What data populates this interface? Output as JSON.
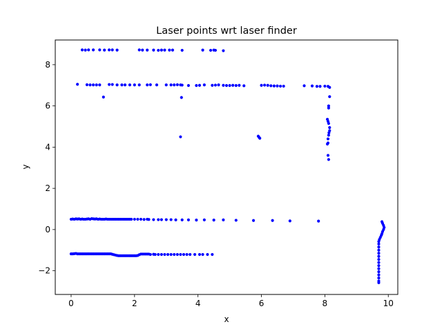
{
  "chart_data": {
    "type": "scatter",
    "title": "Laser points wrt laser finder",
    "xlabel": "x",
    "ylabel": "y",
    "xlim": [
      -0.5,
      10.3
    ],
    "ylim": [
      -3.15,
      9.2
    ],
    "xticks": [
      0,
      2,
      4,
      6,
      8,
      10
    ],
    "yticks": [
      -2,
      0,
      2,
      4,
      6,
      8
    ],
    "xtick_labels": [
      "0",
      "2",
      "4",
      "6",
      "8",
      "10"
    ],
    "ytick_labels": [
      "−2",
      "0",
      "2",
      "4",
      "6",
      "8"
    ],
    "grid": false,
    "marker_color": "#0000ff",
    "series": [
      {
        "points": [
          [
            0.35,
            8.72
          ],
          [
            0.45,
            8.71
          ],
          [
            0.55,
            8.72
          ],
          [
            0.7,
            8.72
          ],
          [
            0.9,
            8.72
          ],
          [
            1.05,
            8.71
          ],
          [
            1.2,
            8.72
          ],
          [
            1.3,
            8.72
          ],
          [
            1.45,
            8.71
          ],
          [
            2.15,
            8.72
          ],
          [
            2.25,
            8.71
          ],
          [
            2.4,
            8.71
          ],
          [
            2.6,
            8.71
          ],
          [
            2.75,
            8.7
          ],
          [
            2.85,
            8.71
          ],
          [
            2.95,
            8.71
          ],
          [
            3.1,
            8.71
          ],
          [
            3.2,
            8.71
          ],
          [
            3.5,
            8.7
          ],
          [
            4.15,
            8.71
          ],
          [
            4.4,
            8.7
          ],
          [
            4.5,
            8.71
          ],
          [
            4.55,
            8.7
          ],
          [
            4.8,
            8.68
          ],
          [
            0.2,
            7.05
          ],
          [
            0.5,
            7.03
          ],
          [
            0.6,
            7.02
          ],
          [
            0.7,
            7.02
          ],
          [
            0.8,
            7.02
          ],
          [
            0.9,
            7.02
          ],
          [
            1.2,
            7.04
          ],
          [
            1.3,
            7.04
          ],
          [
            1.45,
            7.02
          ],
          [
            1.6,
            7.02
          ],
          [
            1.7,
            7.02
          ],
          [
            1.85,
            7.02
          ],
          [
            2.0,
            7.02
          ],
          [
            2.15,
            7.02
          ],
          [
            2.4,
            7.02
          ],
          [
            2.5,
            7.03
          ],
          [
            2.7,
            7.02
          ],
          [
            3.0,
            7.02
          ],
          [
            3.15,
            7.02
          ],
          [
            3.25,
            7.02
          ],
          [
            3.35,
            7.03
          ],
          [
            3.45,
            7.02
          ],
          [
            3.5,
            7.01
          ],
          [
            3.7,
            6.99
          ],
          [
            3.95,
            6.99
          ],
          [
            4.05,
            7.0
          ],
          [
            4.2,
            7.02
          ],
          [
            4.45,
            7.0
          ],
          [
            4.55,
            7.01
          ],
          [
            4.65,
            7.02
          ],
          [
            4.8,
            7.0
          ],
          [
            4.9,
            6.99
          ],
          [
            5.0,
            6.99
          ],
          [
            5.1,
            7.0
          ],
          [
            5.2,
            6.99
          ],
          [
            5.3,
            7.0
          ],
          [
            5.45,
            6.98
          ],
          [
            6.0,
            7.0
          ],
          [
            6.1,
            7.01
          ],
          [
            6.2,
            7.0
          ],
          [
            6.3,
            6.98
          ],
          [
            6.4,
            6.97
          ],
          [
            6.5,
            6.97
          ],
          [
            6.6,
            6.96
          ],
          [
            6.7,
            6.96
          ],
          [
            7.35,
            6.98
          ],
          [
            7.6,
            6.97
          ],
          [
            7.75,
            6.95
          ],
          [
            7.85,
            6.95
          ],
          [
            8.0,
            6.96
          ],
          [
            8.1,
            6.95
          ],
          [
            8.15,
            6.9
          ],
          [
            1.02,
            6.43
          ],
          [
            3.48,
            6.41
          ],
          [
            8.15,
            6.45
          ],
          [
            8.12,
            6.0
          ],
          [
            8.12,
            5.9
          ],
          [
            8.08,
            5.35
          ],
          [
            8.1,
            5.25
          ],
          [
            8.12,
            5.15
          ],
          [
            8.15,
            4.95
          ],
          [
            8.15,
            4.8
          ],
          [
            8.13,
            4.7
          ],
          [
            8.12,
            4.58
          ],
          [
            8.1,
            4.4
          ],
          [
            8.1,
            4.2
          ],
          [
            8.08,
            4.15
          ],
          [
            8.1,
            3.6
          ],
          [
            8.12,
            3.4
          ],
          [
            3.45,
            4.5
          ],
          [
            5.9,
            4.53
          ],
          [
            5.93,
            4.47
          ],
          [
            5.95,
            4.43
          ],
          [
            0.0,
            0.5
          ],
          [
            0.05,
            0.51
          ],
          [
            0.1,
            0.5
          ],
          [
            0.15,
            0.52
          ],
          [
            0.2,
            0.51
          ],
          [
            0.25,
            0.52
          ],
          [
            0.3,
            0.5
          ],
          [
            0.35,
            0.51
          ],
          [
            0.4,
            0.5
          ],
          [
            0.45,
            0.5
          ],
          [
            0.5,
            0.51
          ],
          [
            0.55,
            0.52
          ],
          [
            0.6,
            0.5
          ],
          [
            0.65,
            0.53
          ],
          [
            0.7,
            0.52
          ],
          [
            0.75,
            0.51
          ],
          [
            0.8,
            0.52
          ],
          [
            0.85,
            0.5
          ],
          [
            0.9,
            0.51
          ],
          [
            0.95,
            0.5
          ],
          [
            1.0,
            0.5
          ],
          [
            1.05,
            0.5
          ],
          [
            1.1,
            0.51
          ],
          [
            1.15,
            0.5
          ],
          [
            1.2,
            0.5
          ],
          [
            1.25,
            0.5
          ],
          [
            1.3,
            0.5
          ],
          [
            1.35,
            0.5
          ],
          [
            1.4,
            0.5
          ],
          [
            1.45,
            0.5
          ],
          [
            1.5,
            0.5
          ],
          [
            1.55,
            0.5
          ],
          [
            1.6,
            0.5
          ],
          [
            1.65,
            0.5
          ],
          [
            1.7,
            0.5
          ],
          [
            1.75,
            0.5
          ],
          [
            1.8,
            0.5
          ],
          [
            1.85,
            0.5
          ],
          [
            1.9,
            0.5
          ],
          [
            2.0,
            0.5
          ],
          [
            2.1,
            0.5
          ],
          [
            2.2,
            0.5
          ],
          [
            2.3,
            0.49
          ],
          [
            2.4,
            0.5
          ],
          [
            2.45,
            0.49
          ],
          [
            2.6,
            0.48
          ],
          [
            2.75,
            0.48
          ],
          [
            2.85,
            0.48
          ],
          [
            3.0,
            0.48
          ],
          [
            3.15,
            0.48
          ],
          [
            3.3,
            0.47
          ],
          [
            3.5,
            0.47
          ],
          [
            3.7,
            0.47
          ],
          [
            3.95,
            0.46
          ],
          [
            4.2,
            0.47
          ],
          [
            4.5,
            0.46
          ],
          [
            4.8,
            0.47
          ],
          [
            5.2,
            0.45
          ],
          [
            5.75,
            0.44
          ],
          [
            6.35,
            0.44
          ],
          [
            6.9,
            0.42
          ],
          [
            7.8,
            0.41
          ],
          [
            0.0,
            -1.18
          ],
          [
            0.05,
            -1.18
          ],
          [
            0.1,
            -1.17
          ],
          [
            0.15,
            -1.16
          ],
          [
            0.2,
            -1.18
          ],
          [
            0.25,
            -1.18
          ],
          [
            0.3,
            -1.18
          ],
          [
            0.35,
            -1.18
          ],
          [
            0.4,
            -1.18
          ],
          [
            0.45,
            -1.18
          ],
          [
            0.5,
            -1.18
          ],
          [
            0.55,
            -1.18
          ],
          [
            0.6,
            -1.18
          ],
          [
            0.65,
            -1.18
          ],
          [
            0.7,
            -1.18
          ],
          [
            0.75,
            -1.18
          ],
          [
            0.8,
            -1.18
          ],
          [
            0.85,
            -1.18
          ],
          [
            0.9,
            -1.18
          ],
          [
            0.95,
            -1.18
          ],
          [
            1.0,
            -1.18
          ],
          [
            1.05,
            -1.18
          ],
          [
            1.1,
            -1.18
          ],
          [
            1.15,
            -1.18
          ],
          [
            1.2,
            -1.18
          ],
          [
            1.25,
            -1.18
          ],
          [
            1.3,
            -1.2
          ],
          [
            1.35,
            -1.22
          ],
          [
            1.4,
            -1.24
          ],
          [
            1.45,
            -1.26
          ],
          [
            1.5,
            -1.27
          ],
          [
            1.55,
            -1.27
          ],
          [
            1.6,
            -1.27
          ],
          [
            1.65,
            -1.27
          ],
          [
            1.7,
            -1.27
          ],
          [
            1.75,
            -1.27
          ],
          [
            1.8,
            -1.27
          ],
          [
            1.85,
            -1.27
          ],
          [
            1.9,
            -1.27
          ],
          [
            1.95,
            -1.27
          ],
          [
            2.0,
            -1.27
          ],
          [
            2.05,
            -1.27
          ],
          [
            2.1,
            -1.26
          ],
          [
            2.15,
            -1.22
          ],
          [
            2.2,
            -1.19
          ],
          [
            2.25,
            -1.19
          ],
          [
            2.3,
            -1.19
          ],
          [
            2.35,
            -1.19
          ],
          [
            2.4,
            -1.19
          ],
          [
            2.45,
            -1.19
          ],
          [
            2.5,
            -1.21
          ],
          [
            2.6,
            -1.2
          ],
          [
            2.65,
            -1.21
          ],
          [
            2.75,
            -1.21
          ],
          [
            2.85,
            -1.21
          ],
          [
            2.95,
            -1.21
          ],
          [
            3.05,
            -1.21
          ],
          [
            3.15,
            -1.21
          ],
          [
            3.25,
            -1.21
          ],
          [
            3.35,
            -1.21
          ],
          [
            3.45,
            -1.21
          ],
          [
            3.55,
            -1.21
          ],
          [
            3.65,
            -1.21
          ],
          [
            3.75,
            -1.21
          ],
          [
            3.9,
            -1.21
          ],
          [
            4.05,
            -1.21
          ],
          [
            4.15,
            -1.21
          ],
          [
            4.3,
            -1.21
          ],
          [
            4.45,
            -1.21
          ],
          [
            9.8,
            0.38
          ],
          [
            9.82,
            0.3
          ],
          [
            9.85,
            0.2
          ],
          [
            9.87,
            0.1
          ],
          [
            9.85,
            0.0
          ],
          [
            9.82,
            -0.1
          ],
          [
            9.8,
            -0.2
          ],
          [
            9.78,
            -0.28
          ],
          [
            9.75,
            -0.38
          ],
          [
            9.72,
            -0.48
          ],
          [
            9.7,
            -0.58
          ],
          [
            9.7,
            -0.7
          ],
          [
            9.7,
            -0.85
          ],
          [
            9.7,
            -1.0
          ],
          [
            9.7,
            -1.15
          ],
          [
            9.7,
            -1.3
          ],
          [
            9.7,
            -1.45
          ],
          [
            9.7,
            -1.6
          ],
          [
            9.7,
            -1.75
          ],
          [
            9.7,
            -1.9
          ],
          [
            9.7,
            -2.05
          ],
          [
            9.7,
            -2.2
          ],
          [
            9.7,
            -2.35
          ],
          [
            9.7,
            -2.5
          ],
          [
            9.7,
            -2.58
          ]
        ]
      }
    ]
  }
}
